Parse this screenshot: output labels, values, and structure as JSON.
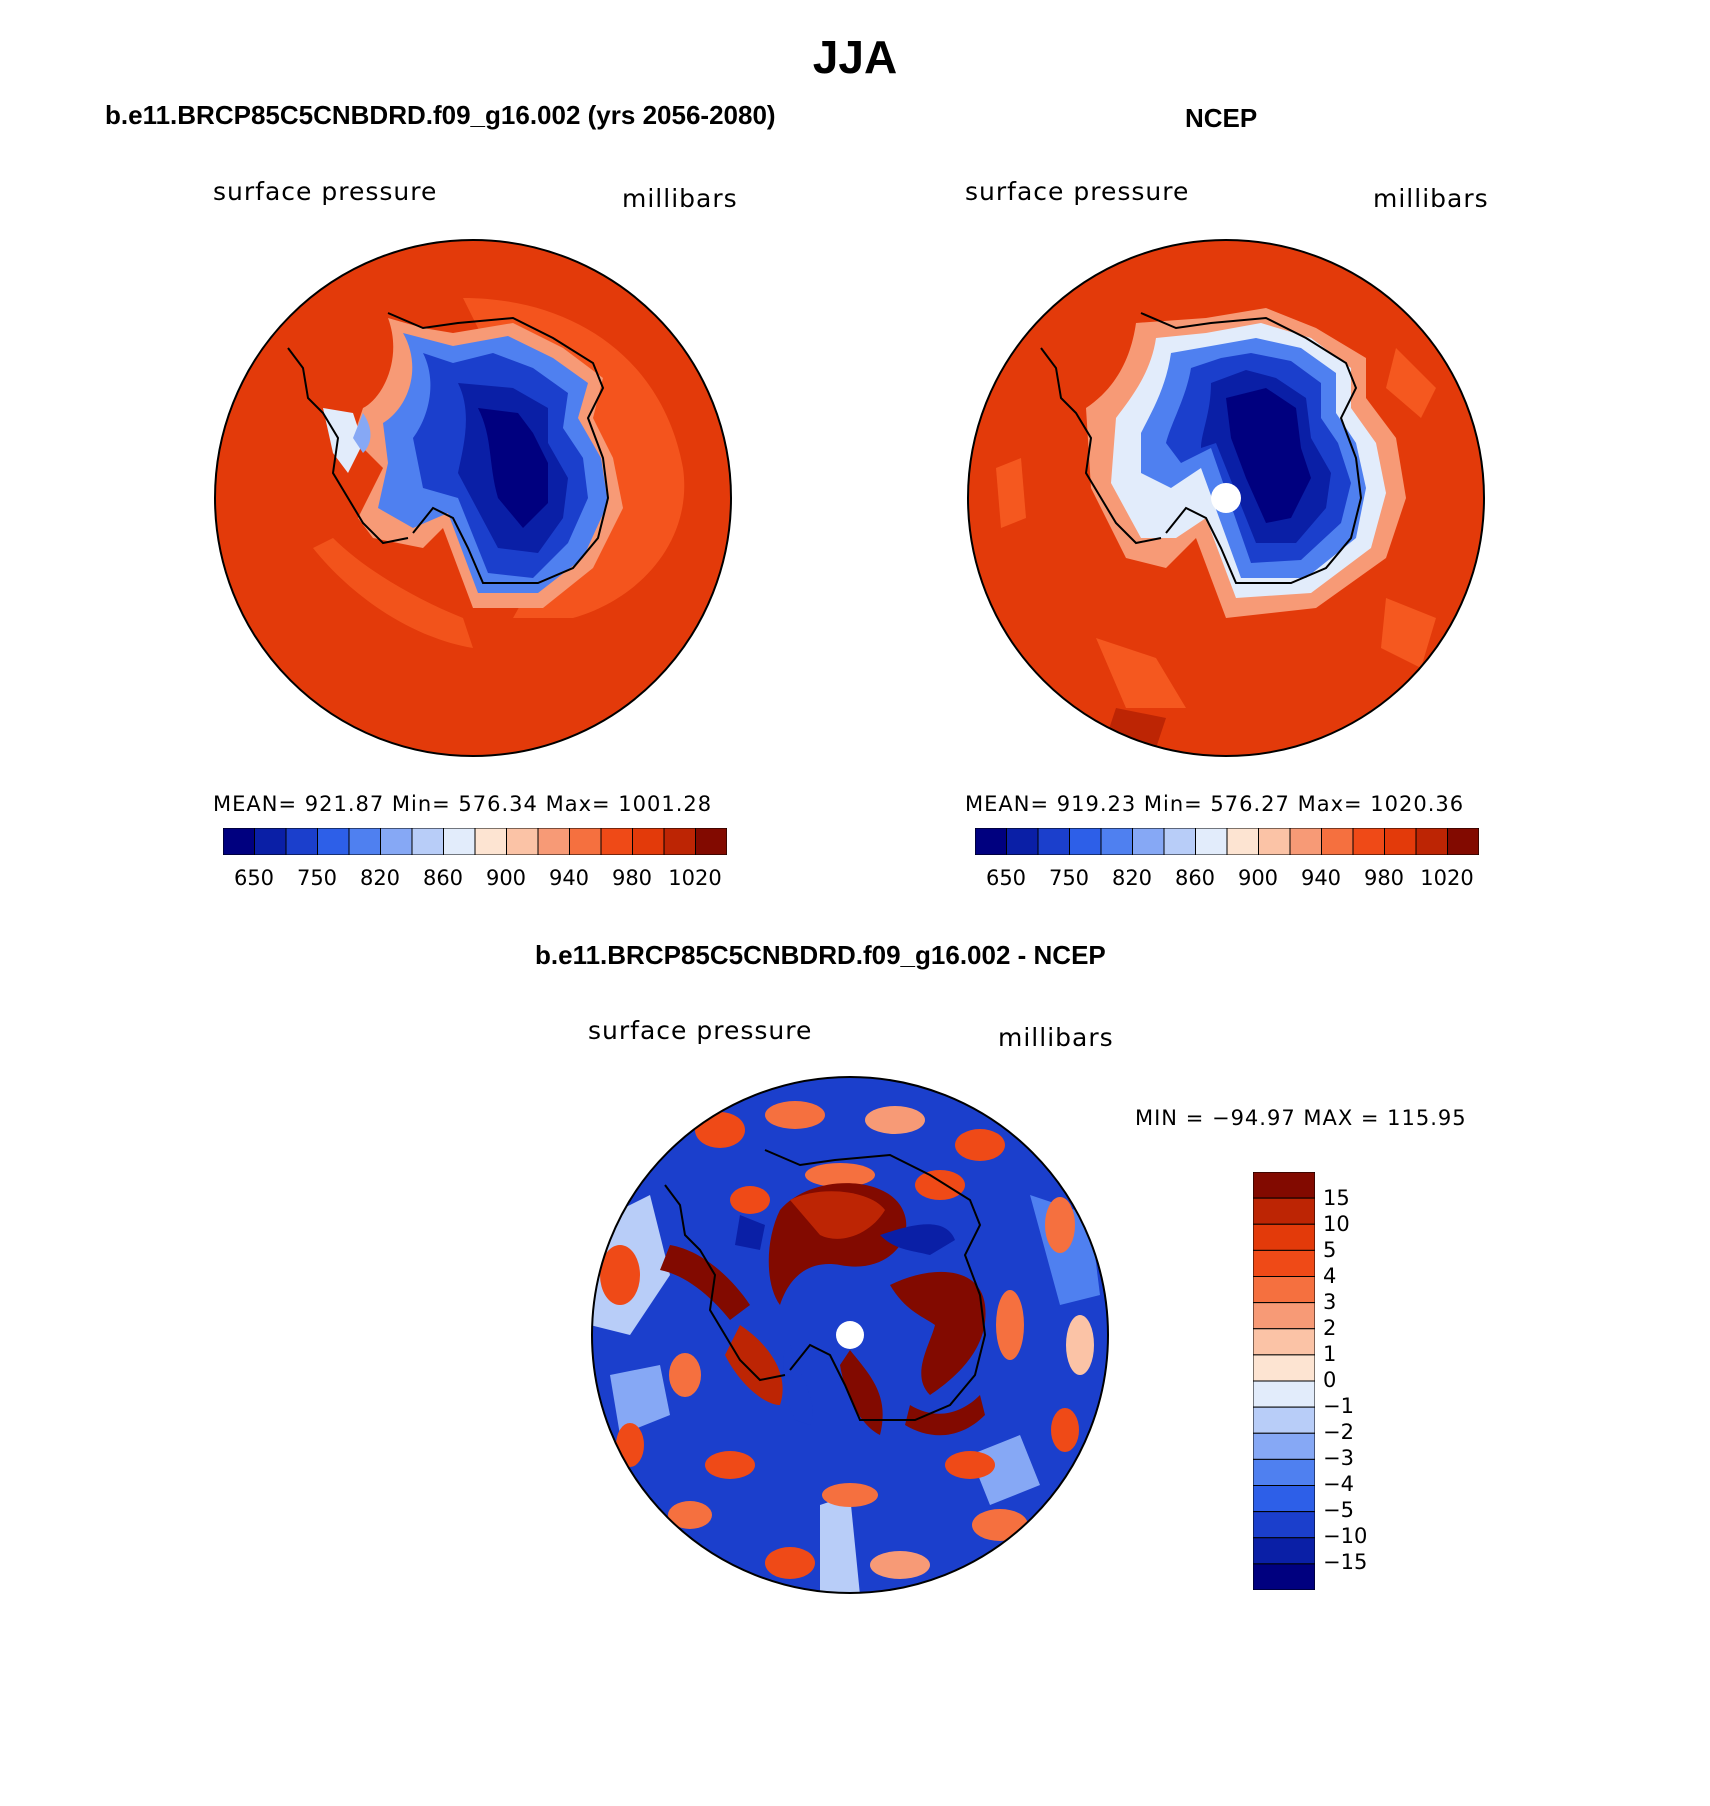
{
  "figure": {
    "title": "JJA",
    "colors": {
      "abs_scale": [
        "#00007f",
        "#0a1fa6",
        "#1b3fcc",
        "#2d5fe8",
        "#4f80f0",
        "#86a8f5",
        "#b8cdf8",
        "#e2ecfb",
        "#fde4d2",
        "#fbc3a6",
        "#f79a76",
        "#f5703f",
        "#ef4a17",
        "#e33a0a",
        "#bd2504",
        "#820a00"
      ],
      "diff_scale": [
        "#00007f",
        "#0a1fa6",
        "#1b3fcc",
        "#2d5fe8",
        "#4f80f0",
        "#86a8f5",
        "#b8cdf8",
        "#e2ecfb",
        "#fde4d2",
        "#fbc3a6",
        "#f79a76",
        "#f5703f",
        "#ef4a17",
        "#e33a0a",
        "#bd2504",
        "#820a00"
      ]
    }
  },
  "panels": {
    "model": {
      "title": "b.e11.BRCP85C5CNBDRD.f09_g16.002 (yrs 2056-2080)",
      "left_label": "surface pressure",
      "right_label": "millibars",
      "stats": "MEAN= 921.87   Min= 576.34   Max= 1001.28",
      "colorbar_ticks": [
        "650",
        "750",
        "820",
        "860",
        "900",
        "940",
        "980",
        "1020"
      ]
    },
    "obs": {
      "title": "NCEP",
      "left_label": "surface pressure",
      "right_label": "millibars",
      "stats": "MEAN= 919.23   Min= 576.27   Max= 1020.36",
      "colorbar_ticks": [
        "650",
        "750",
        "820",
        "860",
        "900",
        "940",
        "980",
        "1020"
      ]
    },
    "diff": {
      "title": "b.e11.BRCP85C5CNBDRD.f09_g16.002 - NCEP",
      "left_label": "surface pressure",
      "right_label": "millibars",
      "stats": "MIN = −94.97 MAX = 115.95",
      "colorbar_ticks": [
        "15",
        "10",
        "5",
        "4",
        "3",
        "2",
        "1",
        "0",
        "−1",
        "−2",
        "−3",
        "−4",
        "−5",
        "−10",
        "−15"
      ]
    }
  }
}
